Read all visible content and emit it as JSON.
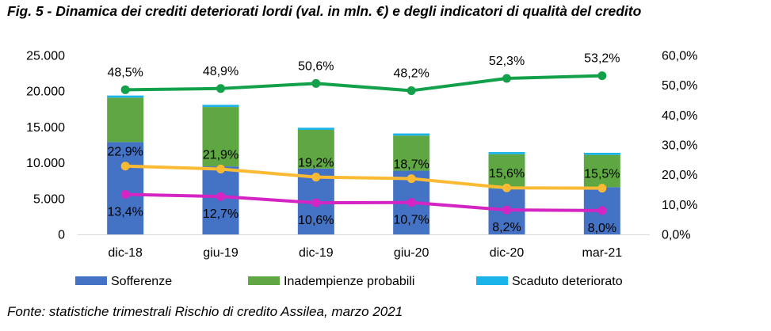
{
  "figure": {
    "title": "Fig. 5 - Dinamica dei crediti deteriorati lordi (val. in mln. €) e degli indicatori di qualità del credito",
    "source": "Fonte: statistiche trimestrali Rischio di credito Assilea, marzo 2021"
  },
  "chart_data": {
    "type": "bar",
    "stacked": true,
    "categories": [
      "dic-18",
      "giu-19",
      "dic-19",
      "giu-20",
      "dic-20",
      "mar-21"
    ],
    "series": [
      {
        "name": "Sofferenze",
        "type": "bar",
        "axis": "left",
        "color": "#4472C4",
        "values": [
          12900,
          9500,
          9200,
          8900,
          6400,
          6600
        ]
      },
      {
        "name": "Inadempienze probabili",
        "type": "bar",
        "axis": "left",
        "color": "#5FA743",
        "values": [
          6200,
          8300,
          5400,
          4900,
          4800,
          4500
        ]
      },
      {
        "name": "Scaduto deteriorato",
        "type": "bar",
        "axis": "left",
        "color": "#1AB4E8",
        "values": [
          300,
          300,
          300,
          300,
          300,
          300
        ]
      },
      {
        "type": "line",
        "axis": "right",
        "color": "#12A04A",
        "values": [
          48.5,
          48.9,
          50.6,
          48.2,
          52.3,
          53.2
        ],
        "labels": [
          "48,5%",
          "48,9%",
          "50,6%",
          "48,2%",
          "52,3%",
          "53,2%"
        ]
      },
      {
        "type": "line",
        "axis": "right",
        "color": "#FBBA33",
        "values": [
          22.9,
          21.9,
          19.2,
          18.7,
          15.6,
          15.5
        ],
        "labels": [
          "22,9%",
          "21,9%",
          "19,2%",
          "18,7%",
          "15,6%",
          "15,5%"
        ]
      },
      {
        "type": "line",
        "axis": "right",
        "color": "#D424C4",
        "values": [
          13.4,
          12.7,
          10.6,
          10.7,
          8.2,
          8.0
        ],
        "labels": [
          "13,4%",
          "12,7%",
          "10,6%",
          "10,7%",
          "8,2%",
          "8,0%"
        ]
      }
    ],
    "y_left": {
      "min": 0,
      "max": 25000,
      "ticks": [
        "0",
        "5.000",
        "10.000",
        "15.000",
        "20.000",
        "25.000"
      ]
    },
    "y_right": {
      "min": 0,
      "max": 60,
      "ticks": [
        "0,0%",
        "10,0%",
        "20,0%",
        "30,0%",
        "40,0%",
        "50,0%",
        "60,0%"
      ]
    },
    "grid": false,
    "legend": {
      "position": "bottom",
      "items": [
        "Sofferenze",
        "Inadempienze probabili",
        "Scaduto deteriorato"
      ]
    }
  }
}
